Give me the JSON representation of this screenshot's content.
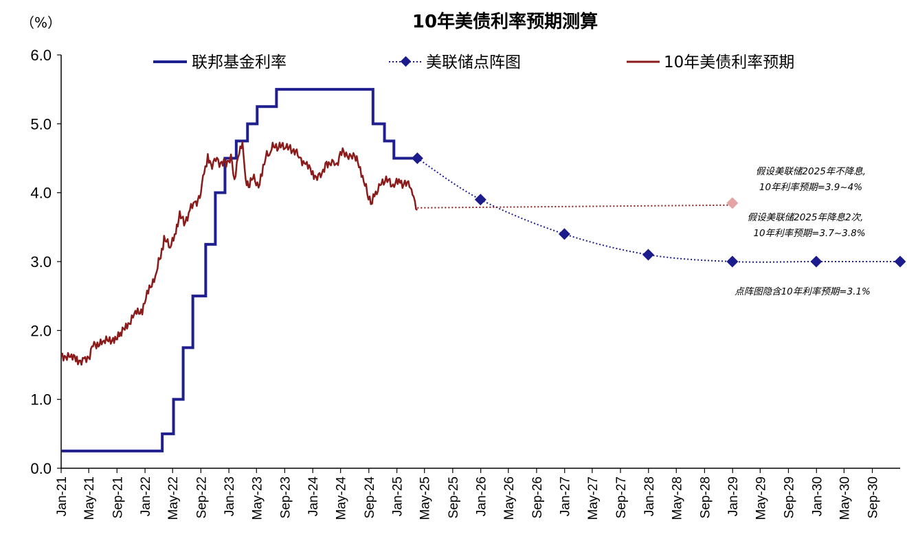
{
  "chart_data": {
    "type": "line",
    "title": "10年美债利率预期测算",
    "ylabel": "（%）",
    "ylim": [
      0,
      6
    ],
    "yticks": [
      "0.0",
      "1.0",
      "2.0",
      "3.0",
      "4.0",
      "5.0",
      "6.0"
    ],
    "xlim": [
      "2021-01",
      "2030-12"
    ],
    "xticks": [
      "Jan-21",
      "May-21",
      "Sep-21",
      "Jan-22",
      "May-22",
      "Sep-22",
      "Jan-23",
      "May-23",
      "Sep-23",
      "Jan-24",
      "May-24",
      "Sep-24",
      "Jan-25",
      "May-25",
      "Sep-25",
      "Jan-26",
      "May-26",
      "Sep-26",
      "Jan-27",
      "May-27",
      "Sep-27",
      "Jan-28",
      "May-28",
      "Sep-28",
      "Jan-29",
      "May-29",
      "Sep-29",
      "Jan-30",
      "May-30",
      "Sep-30"
    ],
    "legend": {
      "placement": "top"
    },
    "series": [
      {
        "name": "联邦基金利率",
        "style": "step",
        "color": "#1f1f8f",
        "points": [
          [
            "2021-01-01",
            0.25
          ],
          [
            "2022-03-17",
            0.5
          ],
          [
            "2022-05-05",
            1.0
          ],
          [
            "2022-06-16",
            1.75
          ],
          [
            "2022-07-28",
            2.5
          ],
          [
            "2022-09-22",
            3.25
          ],
          [
            "2022-11-03",
            4.0
          ],
          [
            "2022-12-15",
            4.5
          ],
          [
            "2023-02-02",
            4.75
          ],
          [
            "2023-03-23",
            5.0
          ],
          [
            "2023-05-04",
            5.25
          ],
          [
            "2023-07-27",
            5.5
          ],
          [
            "2024-09-19",
            5.0
          ],
          [
            "2024-11-08",
            4.75
          ],
          [
            "2024-12-19",
            4.5
          ],
          [
            "2025-03-31",
            4.5
          ]
        ]
      },
      {
        "name": "美联储点阵图",
        "style": "dotted-markers",
        "color": "#1c1c8c",
        "points": [
          [
            "2025-03-31",
            4.5
          ],
          [
            "2025-12-31",
            3.9
          ],
          [
            "2026-12-31",
            3.4
          ],
          [
            "2027-12-31",
            3.1
          ],
          [
            "2028-12-31",
            3.0
          ],
          [
            "2029-12-31",
            3.0
          ],
          [
            "2030-12-31",
            3.0
          ]
        ]
      },
      {
        "name": "10年美债利率预期",
        "style": "line",
        "color": "#8b1a1a",
        "points": [
          [
            "2021-01-01",
            1.65
          ],
          [
            "2021-02-15",
            1.6
          ],
          [
            "2021-03-15",
            1.58
          ],
          [
            "2021-04-10",
            1.55
          ],
          [
            "2021-05-01",
            1.6
          ],
          [
            "2021-05-20",
            1.8
          ],
          [
            "2021-07-01",
            1.82
          ],
          [
            "2021-08-15",
            1.88
          ],
          [
            "2021-09-20",
            1.95
          ],
          [
            "2021-10-20",
            2.1
          ],
          [
            "2021-11-20",
            2.25
          ],
          [
            "2021-12-20",
            2.3
          ],
          [
            "2022-01-20",
            2.6
          ],
          [
            "2022-02-20",
            2.85
          ],
          [
            "2022-03-10",
            3.1
          ],
          [
            "2022-03-25",
            3.3
          ],
          [
            "2022-04-20",
            3.25
          ],
          [
            "2022-05-15",
            3.4
          ],
          [
            "2022-06-01",
            3.7
          ],
          [
            "2022-06-20",
            3.55
          ],
          [
            "2022-07-15",
            3.75
          ],
          [
            "2022-08-10",
            3.85
          ],
          [
            "2022-09-01",
            4.0
          ],
          [
            "2022-09-15",
            4.3
          ],
          [
            "2022-10-01",
            4.5
          ],
          [
            "2022-10-20",
            4.4
          ],
          [
            "2022-11-10",
            4.5
          ],
          [
            "2022-12-01",
            4.4
          ],
          [
            "2022-12-20",
            4.45
          ],
          [
            "2023-01-10",
            4.5
          ],
          [
            "2023-01-25",
            4.2
          ],
          [
            "2023-02-15",
            4.6
          ],
          [
            "2023-03-01",
            4.7
          ],
          [
            "2023-03-15",
            4.2
          ],
          [
            "2023-04-01",
            4.1
          ],
          [
            "2023-04-20",
            4.25
          ],
          [
            "2023-05-10",
            4.05
          ],
          [
            "2023-05-25",
            4.3
          ],
          [
            "2023-06-15",
            4.55
          ],
          [
            "2023-07-01",
            4.6
          ],
          [
            "2023-07-20",
            4.7
          ],
          [
            "2023-08-10",
            4.65
          ],
          [
            "2023-09-01",
            4.7
          ],
          [
            "2023-09-20",
            4.65
          ],
          [
            "2023-10-10",
            4.6
          ],
          [
            "2023-11-01",
            4.55
          ],
          [
            "2023-12-01",
            4.4
          ],
          [
            "2024-01-01",
            4.3
          ],
          [
            "2024-01-20",
            4.2
          ],
          [
            "2024-02-10",
            4.3
          ],
          [
            "2024-03-01",
            4.4
          ],
          [
            "2024-03-20",
            4.45
          ],
          [
            "2024-04-10",
            4.4
          ],
          [
            "2024-04-30",
            4.55
          ],
          [
            "2024-05-20",
            4.6
          ],
          [
            "2024-06-10",
            4.5
          ],
          [
            "2024-07-01",
            4.55
          ],
          [
            "2024-07-20",
            4.4
          ],
          [
            "2024-08-05",
            4.2
          ],
          [
            "2024-08-25",
            4.0
          ],
          [
            "2024-09-15",
            3.85
          ],
          [
            "2024-10-01",
            4.0
          ],
          [
            "2024-10-20",
            4.1
          ],
          [
            "2024-11-10",
            4.2
          ],
          [
            "2024-12-01",
            4.15
          ],
          [
            "2024-12-20",
            4.1
          ],
          [
            "2025-01-15",
            4.18
          ],
          [
            "2025-02-05",
            4.1
          ],
          [
            "2025-02-25",
            4.15
          ],
          [
            "2025-03-10",
            3.95
          ],
          [
            "2025-03-20",
            3.85
          ],
          [
            "2025-03-31",
            3.75
          ]
        ]
      },
      {
        "name": "",
        "style": "dotted",
        "color": "#8b1a1a",
        "points": [
          [
            "2025-03-31",
            3.78
          ],
          [
            "2028-12-31",
            3.82
          ]
        ]
      }
    ],
    "markers": [
      {
        "date": "2028-12-31",
        "value": 3.85,
        "color": "#e6a3a3"
      }
    ],
    "annotations": [
      {
        "lines": [
          "假设美联储2025年不降息,",
          "10年利率预期=3.9~4%"
        ]
      },
      {
        "lines": [
          "假设美联储2025年降息2次,",
          "10年利率预期=3.7~3.8%"
        ]
      },
      {
        "lines": [
          "点阵图隐含10年利率预期=3.1%"
        ]
      }
    ]
  }
}
